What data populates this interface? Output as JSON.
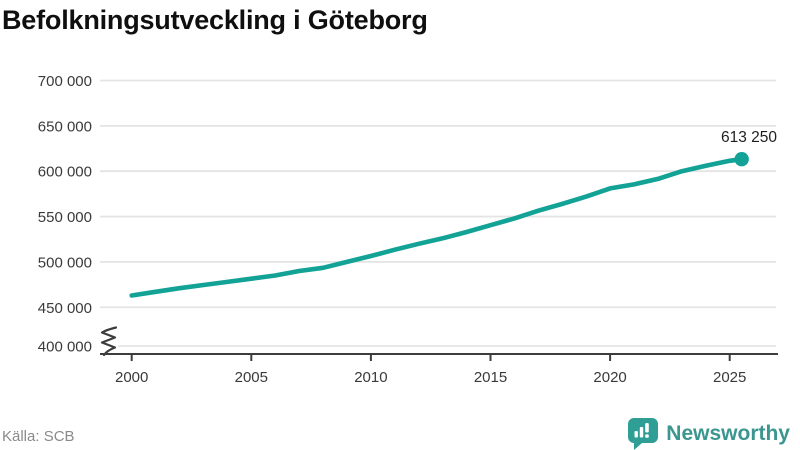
{
  "header": {
    "title": "Befolkningsutveckling i Göteborg"
  },
  "footer": {
    "source_label": "Källa: SCB",
    "brand_name": "Newsworthy"
  },
  "logo": {
    "icon_color": "#2f9e94",
    "text_color": "#3a968f"
  },
  "chart_data": {
    "type": "line",
    "title": "Befolkningsutveckling i Göteborg",
    "xlabel": "",
    "ylabel": "",
    "grid": true,
    "legend": "none",
    "xlim": [
      1998.7,
      2026.9
    ],
    "ylim": [
      400000,
      700000
    ],
    "axis_break": {
      "between": [
        400000,
        450000
      ]
    },
    "x_ticks": [
      "2000",
      "2005",
      "2010",
      "2015",
      "2020",
      "2025"
    ],
    "y_ticks": [
      {
        "label": "700 000",
        "value": 700000
      },
      {
        "label": "650 000",
        "value": 650000
      },
      {
        "label": "600 000",
        "value": 600000
      },
      {
        "label": "550 000",
        "value": 550000
      },
      {
        "label": "500 000",
        "value": 500000
      },
      {
        "label": "450 000",
        "value": 450000
      },
      {
        "label": "400 000",
        "value": 400000
      }
    ],
    "x": [
      2000,
      2001,
      2002,
      2003,
      2004,
      2005,
      2006,
      2007,
      2008,
      2009,
      2010,
      2011,
      2012,
      2013,
      2014,
      2015,
      2016,
      2017,
      2018,
      2019,
      2020,
      2021,
      2022,
      2023,
      2024,
      2025,
      2025.5
    ],
    "values": [
      463000,
      467000,
      471000,
      474500,
      478000,
      481500,
      485000,
      490000,
      493500,
      500000,
      506500,
      513500,
      520000,
      526000,
      533000,
      540500,
      548000,
      556500,
      564000,
      572000,
      581000,
      585500,
      591500,
      600000,
      606000,
      611500,
      613250
    ],
    "end_label": "613 250",
    "end_value": 613250,
    "colors": {
      "line": "#12a296",
      "grid": "#e4e4e4",
      "axis": "#3d3d3d",
      "tick_label": "#3a3a3a",
      "annotation": "#1f1f1f"
    }
  }
}
